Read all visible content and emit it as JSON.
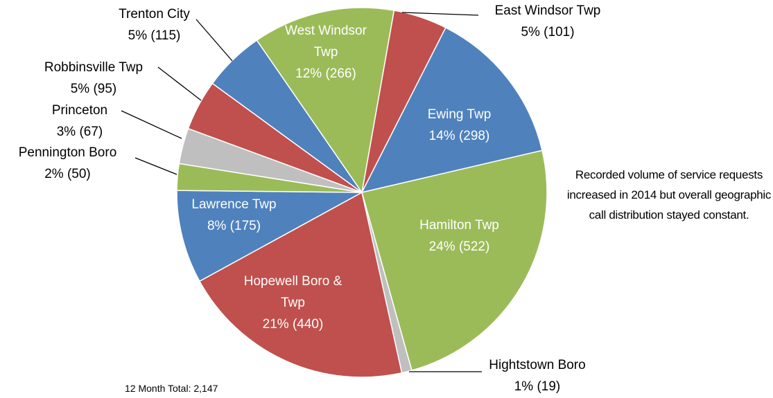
{
  "chart_data": {
    "type": "pie",
    "categories": [
      "East Windsor Twp",
      "Ewing Twp",
      "Hamilton Twp",
      "Hightstown Boro",
      "Hopewell Boro & Twp",
      "Lawrence Twp",
      "Pennington Boro",
      "Princeton",
      "Robbinsville Twp",
      "Trenton City",
      "West Windsor Twp"
    ],
    "values": [
      101,
      298,
      522,
      19,
      440,
      175,
      50,
      67,
      95,
      115,
      266
    ],
    "value_labels": [
      "5% (101)",
      "14% (298)",
      "24% (522)",
      "1% (19)",
      "21% (440)",
      "8% (175)",
      "2% (50)",
      "3% (67)",
      "5% (95)",
      "5% (115)",
      "12% (266)"
    ],
    "colors": [
      "#c0504d",
      "#4f81bd",
      "#9bbb59",
      "#bfbfbf",
      "#c0504d",
      "#4f81bd",
      "#9bbb59",
      "#bfbfbf",
      "#c0504d",
      "#4f81bd",
      "#9bbb59"
    ],
    "annotation": "Recorded volume of service requests increased in 2014 but overall geographic call distribution stayed constant.",
    "footnote": "12 Month Total: 2,147"
  }
}
